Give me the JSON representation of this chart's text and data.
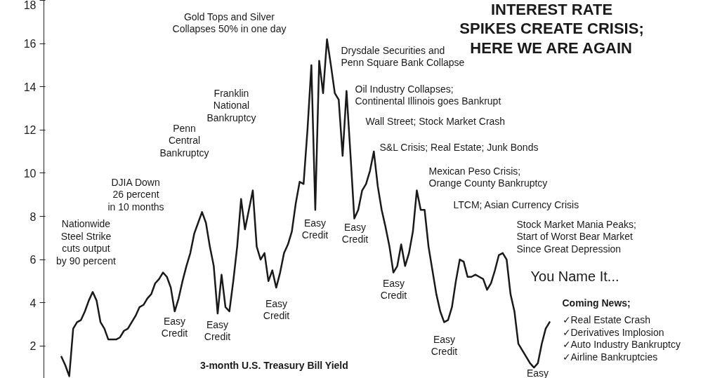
{
  "chart_data": {
    "type": "line",
    "title": "INTEREST RATE\nSPIKES CREATE CRISIS;\nHERE WE ARE AGAIN",
    "subtitle": "3-month U.S. Treasury Bill Yield",
    "categories": [
      null,
      null,
      null,
      null,
      null,
      null,
      null,
      null,
      null,
      null,
      null,
      null,
      null,
      null,
      null,
      null,
      null,
      null,
      null,
      null,
      null,
      null,
      null,
      null,
      null,
      null,
      null,
      null,
      null,
      null,
      null,
      null,
      null,
      null,
      null,
      null,
      null,
      null,
      null,
      null,
      null,
      null,
      null,
      null,
      null,
      null,
      null,
      null,
      null,
      null,
      null,
      null,
      null,
      null,
      null,
      null,
      null,
      null,
      null,
      null,
      null,
      null,
      null,
      null,
      null,
      null,
      null,
      null,
      null,
      null,
      null,
      null,
      null,
      null,
      null,
      null,
      null,
      null,
      null,
      null,
      null,
      null,
      null,
      null,
      null,
      null,
      null,
      null,
      null,
      null,
      null,
      null,
      null,
      null,
      null,
      null,
      null,
      null,
      null,
      null,
      null,
      null,
      null,
      null,
      null,
      null,
      null,
      null,
      null,
      null,
      null,
      null,
      null,
      null,
      null,
      null,
      null,
      null,
      null,
      null,
      null,
      null,
      null,
      null,
      null,
      null
    ],
    "series": [
      {
        "color": "#1a1a1a",
        "values": [
          1.5,
          1.1,
          0.6,
          2.8,
          3.1,
          3.2,
          3.6,
          4.1,
          4.5,
          4.1,
          3.1,
          2.8,
          2.3,
          2.3,
          2.3,
          2.4,
          2.7,
          2.8,
          3.1,
          3.4,
          3.8,
          3.9,
          4.2,
          4.4,
          4.9,
          5.1,
          5.4,
          5.2,
          4.7,
          3.6,
          4.2,
          5.0,
          5.7,
          6.3,
          7.2,
          7.7,
          8.2,
          7.7,
          6.6,
          5.7,
          3.5,
          5.3,
          3.8,
          3.6,
          5.0,
          6.6,
          8.8,
          7.4,
          8.3,
          9.2,
          6.6,
          6.0,
          6.3,
          5.0,
          5.5,
          4.7,
          5.4,
          6.3,
          6.7,
          7.3,
          8.6,
          9.6,
          9.5,
          12.0,
          15.0,
          8.3,
          15.2,
          13.7,
          16.2,
          15.0,
          13.7,
          13.4,
          10.8,
          13.8,
          10.9,
          7.9,
          8.3,
          9.2,
          9.5,
          10.1,
          11.0,
          9.4,
          8.3,
          7.5,
          6.6,
          5.4,
          5.7,
          6.7,
          5.7,
          6.3,
          7.3,
          9.2,
          8.3,
          8.3,
          6.6,
          5.5,
          4.4,
          3.6,
          3.1,
          3.2,
          3.8,
          5.0,
          6.0,
          5.9,
          5.2,
          5.2,
          5.3,
          5.2,
          5.1,
          4.6,
          4.9,
          5.5,
          6.2,
          6.3,
          6.0,
          4.4,
          3.6,
          2.1,
          1.8,
          1.5,
          1.2,
          1.0,
          1.2,
          2.1,
          2.8,
          3.1
        ]
      }
    ],
    "ylim": [
      0.5,
      18
    ],
    "yticks": [
      2,
      4,
      6,
      8,
      10,
      12,
      14,
      16,
      18
    ],
    "grid": false,
    "tick_labels": "y",
    "annotations": [
      "Nationwide\nSteel Strike\ncuts output\nby 90 percent",
      "DJIA Down\n26 percent\nin 10 months",
      "Penn\nCentral\nBankruptcy",
      "Franklin\nNational\nBankruptcy",
      "Gold Tops and Silver\nCollapses 50% in one day",
      "Drysdale Securities and\nPenn Square Bank Collapse",
      "Oil Industry Collapses;\nContinental Illinois goes Bankrupt",
      "Wall Street; Stock Market Crash",
      "S&L Crisis; Real Estate; Junk Bonds",
      "Mexican Peso Crisis;\nOrange County Bankruptcy",
      "LTCM; Asian Currency Crisis",
      "Stock Market Mania Peaks;\nStart of Worst Bear Market\nSince Great Depression",
      "You Name It...",
      "Coming News;",
      "✓Real Estate Crash\n✓Derivatives Implosion\n✓Auto Industry Bankruptcy\n✓Airline Bankruptcies",
      "Easy\nCredit",
      "Easy\nCredit",
      "Easy\nCredit",
      "Easy\nCredit",
      "Easy\nCredit",
      "Easy\nCredit",
      "Easy\nCredit",
      "Easy"
    ]
  }
}
